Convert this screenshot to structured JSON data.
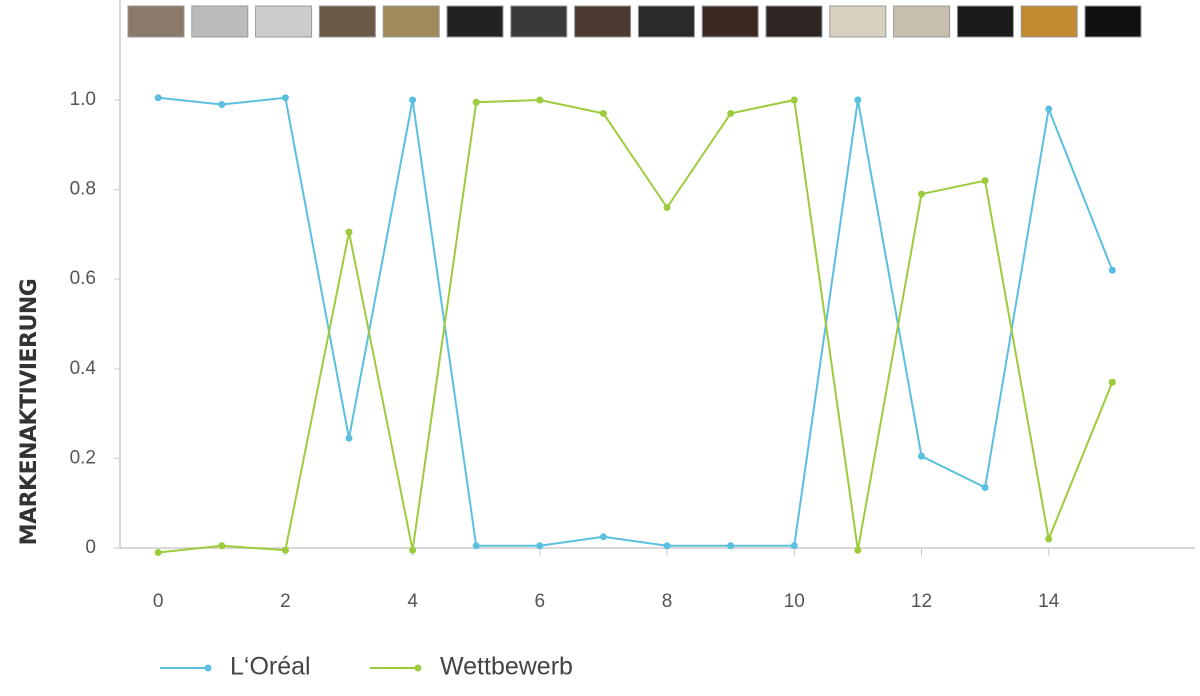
{
  "chart_data": {
    "type": "line",
    "y_label": "MARKENAKTIVIERUNG",
    "x": [
      0,
      1,
      2,
      3,
      4,
      5,
      6,
      7,
      8,
      9,
      10,
      11,
      12,
      13,
      14,
      15
    ],
    "series": [
      {
        "name": "L‘Oréal",
        "color": "#5bbfe0",
        "values": [
          1.005,
          0.99,
          1.005,
          0.245,
          1.0,
          0.005,
          0.005,
          0.025,
          0.005,
          0.005,
          0.005,
          1.0,
          0.205,
          0.135,
          0.98,
          0.62
        ]
      },
      {
        "name": "Wettbewerb",
        "color": "#9ccc3c",
        "values": [
          -0.01,
          0.005,
          -0.005,
          0.705,
          -0.005,
          0.995,
          1.0,
          0.97,
          0.76,
          0.97,
          1.0,
          -0.005,
          0.79,
          0.82,
          0.02,
          0.37
        ]
      }
    ],
    "xlim": [
      -0.6,
      16.3
    ],
    "ylim": [
      0,
      1.2
    ],
    "xticks": [
      0,
      2,
      4,
      6,
      8,
      10,
      12,
      14
    ],
    "yticks": [
      0,
      0.2,
      0.4,
      0.6,
      0.8,
      {
        "value": 1,
        "label": "1.0"
      }
    ],
    "grid": false
  }
}
